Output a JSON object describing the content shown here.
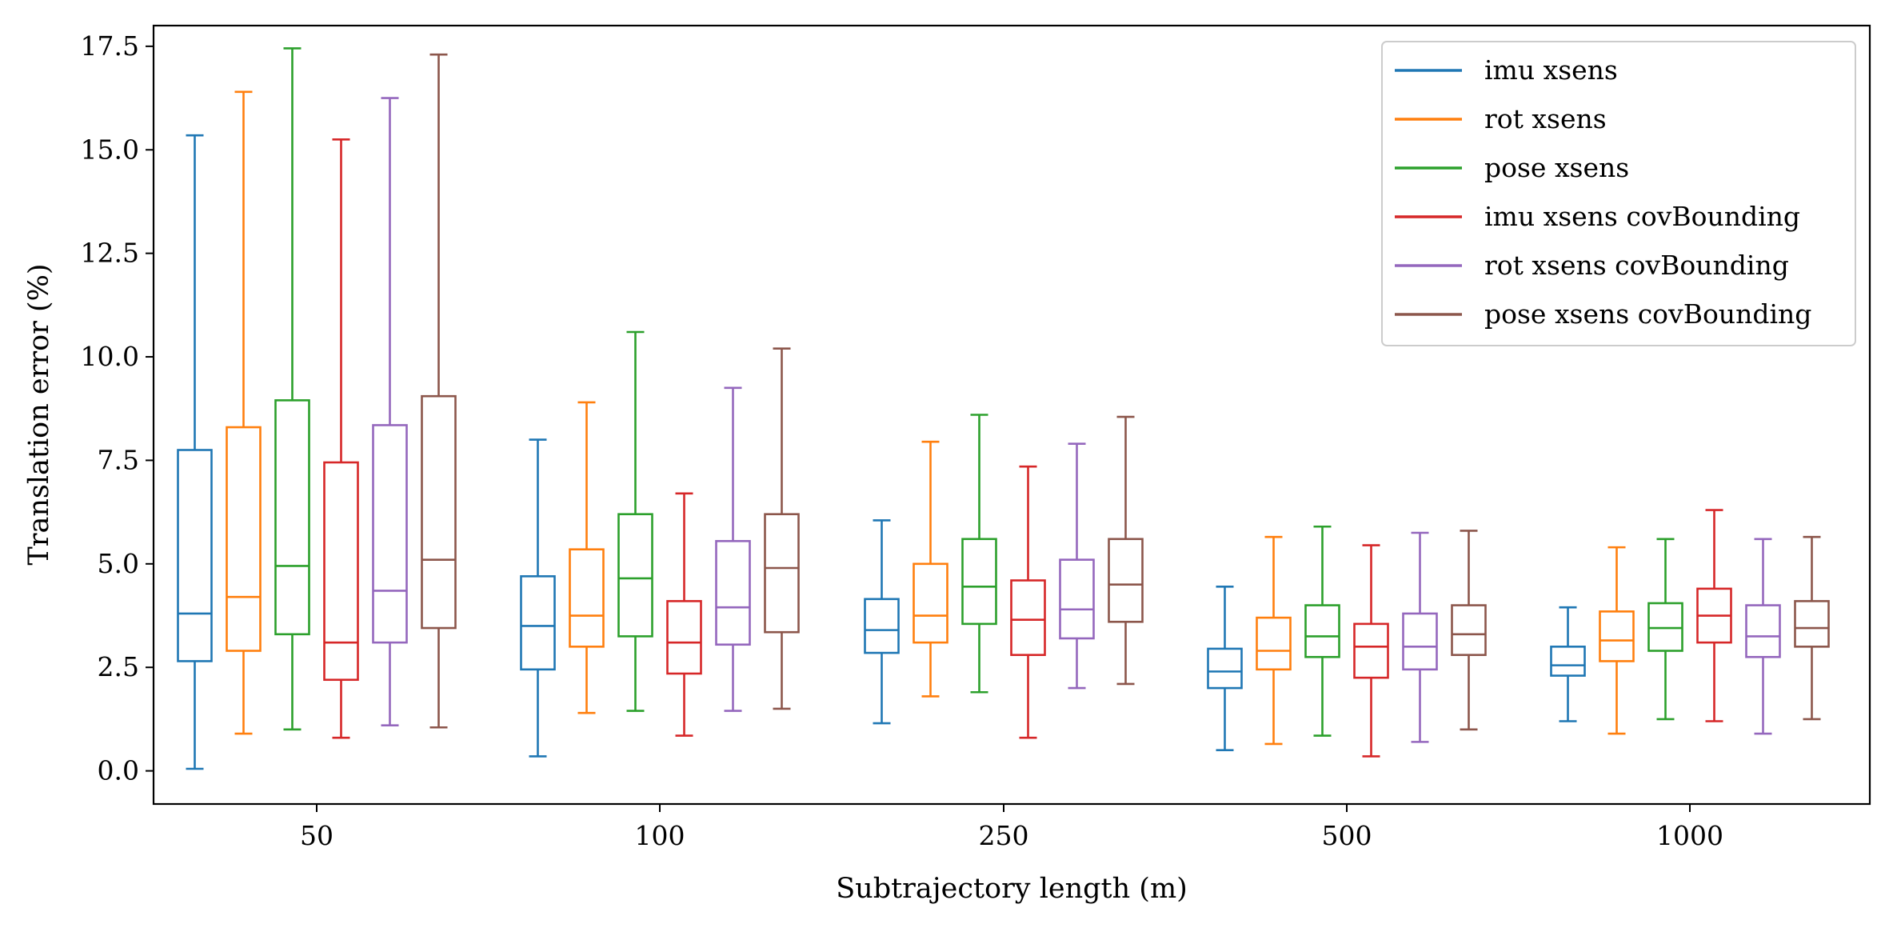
{
  "chart_data": {
    "type": "box",
    "title": "",
    "xlabel": "Subtrajectory length (m)",
    "ylabel": "Translation error (%)",
    "ylim": [
      -0.8,
      18.0
    ],
    "yticks": [
      "0.0",
      "2.5",
      "5.0",
      "7.5",
      "10.0",
      "12.5",
      "15.0",
      "17.5"
    ],
    "categories": [
      "50",
      "100",
      "250",
      "500",
      "1000"
    ],
    "grid": false,
    "legend_position": "top-right",
    "series": [
      {
        "name": "imu xsens",
        "color": "#1f77b4",
        "boxes": [
          {
            "min": 0.05,
            "q1": 2.65,
            "median": 3.8,
            "q3": 7.75,
            "max": 15.35
          },
          {
            "min": 0.35,
            "q1": 2.45,
            "median": 3.5,
            "q3": 4.7,
            "max": 8.0
          },
          {
            "min": 1.15,
            "q1": 2.85,
            "median": 3.4,
            "q3": 4.15,
            "max": 6.05
          },
          {
            "min": 0.5,
            "q1": 2.0,
            "median": 2.4,
            "q3": 2.95,
            "max": 4.45
          },
          {
            "min": 1.2,
            "q1": 2.3,
            "median": 2.55,
            "q3": 3.0,
            "max": 3.95
          }
        ]
      },
      {
        "name": "rot xsens",
        "color": "#ff7f0e",
        "boxes": [
          {
            "min": 0.9,
            "q1": 2.9,
            "median": 4.2,
            "q3": 8.3,
            "max": 16.4
          },
          {
            "min": 1.4,
            "q1": 3.0,
            "median": 3.75,
            "q3": 5.35,
            "max": 8.9
          },
          {
            "min": 1.8,
            "q1": 3.1,
            "median": 3.75,
            "q3": 5.0,
            "max": 7.95
          },
          {
            "min": 0.65,
            "q1": 2.45,
            "median": 2.9,
            "q3": 3.7,
            "max": 5.65
          },
          {
            "min": 0.9,
            "q1": 2.65,
            "median": 3.15,
            "q3": 3.85,
            "max": 5.4
          }
        ]
      },
      {
        "name": "pose xsens",
        "color": "#2ca02c",
        "boxes": [
          {
            "min": 1.0,
            "q1": 3.3,
            "median": 4.95,
            "q3": 8.95,
            "max": 17.45
          },
          {
            "min": 1.45,
            "q1": 3.25,
            "median": 4.65,
            "q3": 6.2,
            "max": 10.6
          },
          {
            "min": 1.9,
            "q1": 3.55,
            "median": 4.45,
            "q3": 5.6,
            "max": 8.6
          },
          {
            "min": 0.85,
            "q1": 2.75,
            "median": 3.25,
            "q3": 4.0,
            "max": 5.9
          },
          {
            "min": 1.25,
            "q1": 2.9,
            "median": 3.45,
            "q3": 4.05,
            "max": 5.6
          }
        ]
      },
      {
        "name": "imu xsens covBounding",
        "color": "#d62728",
        "boxes": [
          {
            "min": 0.8,
            "q1": 2.2,
            "median": 3.1,
            "q3": 7.45,
            "max": 15.25
          },
          {
            "min": 0.85,
            "q1": 2.35,
            "median": 3.1,
            "q3": 4.1,
            "max": 6.7
          },
          {
            "min": 0.8,
            "q1": 2.8,
            "median": 3.65,
            "q3": 4.6,
            "max": 7.35
          },
          {
            "min": 0.35,
            "q1": 2.25,
            "median": 3.0,
            "q3": 3.55,
            "max": 5.45
          },
          {
            "min": 1.2,
            "q1": 3.1,
            "median": 3.75,
            "q3": 4.4,
            "max": 6.3
          }
        ]
      },
      {
        "name": "rot xsens covBounding",
        "color": "#9467bd",
        "boxes": [
          {
            "min": 1.1,
            "q1": 3.1,
            "median": 4.35,
            "q3": 8.35,
            "max": 16.25
          },
          {
            "min": 1.45,
            "q1": 3.05,
            "median": 3.95,
            "q3": 5.55,
            "max": 9.25
          },
          {
            "min": 2.0,
            "q1": 3.2,
            "median": 3.9,
            "q3": 5.1,
            "max": 7.9
          },
          {
            "min": 0.7,
            "q1": 2.45,
            "median": 3.0,
            "q3": 3.8,
            "max": 5.75
          },
          {
            "min": 0.9,
            "q1": 2.75,
            "median": 3.25,
            "q3": 4.0,
            "max": 5.6
          }
        ]
      },
      {
        "name": "pose xsens covBounding",
        "color": "#8c564b",
        "boxes": [
          {
            "min": 1.05,
            "q1": 3.45,
            "median": 5.1,
            "q3": 9.05,
            "max": 17.3
          },
          {
            "min": 1.5,
            "q1": 3.35,
            "median": 4.9,
            "q3": 6.2,
            "max": 10.2
          },
          {
            "min": 2.1,
            "q1": 3.6,
            "median": 4.5,
            "q3": 5.6,
            "max": 8.55
          },
          {
            "min": 1.0,
            "q1": 2.8,
            "median": 3.3,
            "q3": 4.0,
            "max": 5.8
          },
          {
            "min": 1.25,
            "q1": 3.0,
            "median": 3.45,
            "q3": 4.1,
            "max": 5.65
          }
        ]
      }
    ]
  }
}
